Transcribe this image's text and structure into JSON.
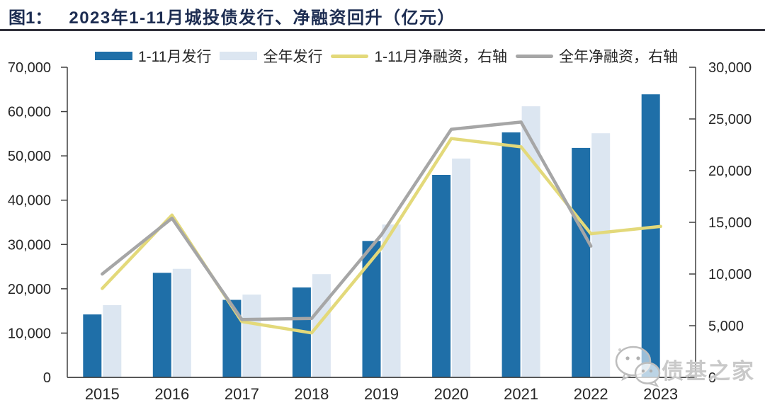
{
  "header": {
    "figure_label": "图1：",
    "title": "2023年1-11月城投债发行、净融资回升（亿元）"
  },
  "watermark": {
    "text": "债基之家",
    "icon": "wechat-icon"
  },
  "colors": {
    "bar_dark_blue": "#1F6FA8",
    "bar_light_blue": "#DCE6F1",
    "line_yellow": "#E3D97A",
    "line_gray": "#A6A6A6",
    "title_navy": "#1D2D52",
    "axis": "#404040",
    "text": "#262626",
    "watermark_gray": "#C9C9C9"
  },
  "chart_data": {
    "type": "bar",
    "title": "2023年1-11月城投债发行、净融资回升（亿元）",
    "unit": "亿元",
    "categories": [
      "2015",
      "2016",
      "2017",
      "2018",
      "2019",
      "2020",
      "2021",
      "2022",
      "2023"
    ],
    "series": [
      {
        "name": "1-11月发行",
        "kind": "bar",
        "axis": "left",
        "color": "#1F6FA8",
        "values": [
          14200,
          23600,
          17500,
          20300,
          30800,
          45700,
          55300,
          51800,
          63900
        ]
      },
      {
        "name": "全年发行",
        "kind": "bar",
        "axis": "left",
        "color": "#DCE6F1",
        "values": [
          16300,
          24500,
          18700,
          23300,
          34500,
          49400,
          61200,
          55100,
          null
        ]
      },
      {
        "name": "1-11月净融资，右轴",
        "kind": "line",
        "axis": "right",
        "color": "#E3D97A",
        "values": [
          8600,
          15700,
          5400,
          4300,
          12500,
          23100,
          22300,
          13900,
          14600
        ]
      },
      {
        "name": "全年净融资，右轴",
        "kind": "line",
        "axis": "right",
        "color": "#A6A6A6",
        "values": [
          10000,
          15400,
          5600,
          5700,
          13800,
          24000,
          24700,
          12700,
          null
        ]
      }
    ],
    "left_axis": {
      "min": 0,
      "max": 70000,
      "step": 10000,
      "tick_labels": [
        "0",
        "10,000",
        "20,000",
        "30,000",
        "40,000",
        "50,000",
        "60,000",
        "70,000"
      ]
    },
    "right_axis": {
      "min": 0,
      "max": 30000,
      "step": 5000,
      "tick_labels": [
        "0",
        "5,000",
        "10,000",
        "15,000",
        "20,000",
        "25,000",
        "30,000"
      ]
    },
    "grid": false,
    "legend_position": "top"
  }
}
